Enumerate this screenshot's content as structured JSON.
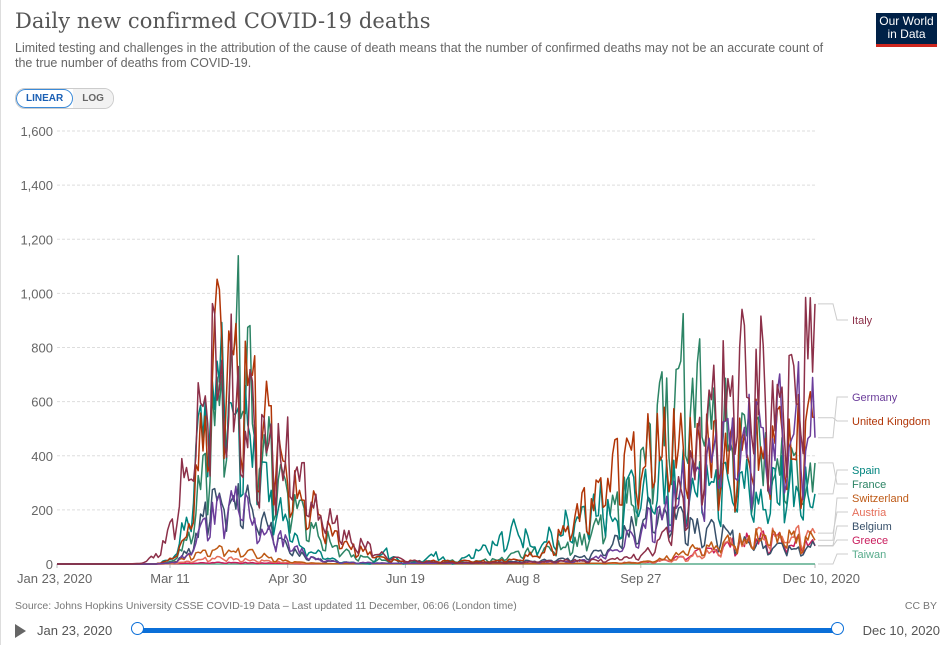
{
  "header": {
    "title": "Daily new confirmed COVID-19 deaths",
    "subtitle": "Limited testing and challenges in the attribution of the cause of death means that the number of confirmed deaths may not be an accurate count of the true number of deaths from COVID-19.",
    "logo_line1": "Our World",
    "logo_line2": "in Data"
  },
  "scale_toggle": {
    "options": [
      "LINEAR",
      "LOG"
    ],
    "selected": "LINEAR"
  },
  "footer": {
    "source": "Source: Johns Hopkins University CSSE COVID-19 Data – Last updated 11 December, 06:06 (London time)",
    "license": "CC BY"
  },
  "timeline": {
    "start_label": "Jan 23, 2020",
    "end_label": "Dec 10, 2020",
    "play_icon": "play-icon",
    "start_fraction": 0,
    "end_fraction": 1
  },
  "chart_data": {
    "type": "line",
    "title": "Daily new confirmed COVID-19 deaths",
    "xlabel": "",
    "ylabel": "",
    "x_start": "2020-01-23",
    "x_end": "2020-12-10",
    "x_days_total": 322,
    "xticks": [
      {
        "label": "Jan 23, 2020",
        "day": 0
      },
      {
        "label": "Mar 11",
        "day": 48
      },
      {
        "label": "Apr 30",
        "day": 98
      },
      {
        "label": "Jun 19",
        "day": 148
      },
      {
        "label": "Aug 8",
        "day": 198
      },
      {
        "label": "Sep 27",
        "day": 248
      },
      {
        "label": "Dec 10, 2020",
        "day": 322
      }
    ],
    "yticks": [
      0,
      200,
      400,
      600,
      800,
      1000,
      1200,
      1400,
      1600
    ],
    "ytick_labels": [
      "0",
      "200",
      "400",
      "600",
      "800",
      "1,000",
      "1,200",
      "1,400",
      "1,600"
    ],
    "ylim": [
      0,
      1600
    ],
    "grid": true,
    "legend_placement": "right",
    "sample_interval_days": 7,
    "series": [
      {
        "name": "Italy",
        "color": "#8c3049",
        "values": [
          0,
          0,
          0,
          0,
          0,
          2,
          30,
          170,
          420,
          720,
          800,
          650,
          560,
          470,
          420,
          300,
          220,
          150,
          90,
          60,
          30,
          15,
          10,
          6,
          5,
          5,
          5,
          4,
          6,
          10,
          10,
          14,
          12,
          15,
          20,
          30,
          50,
          120,
          300,
          450,
          620,
          720,
          750,
          700,
          650,
          660,
          900
        ]
      },
      {
        "name": "Germany",
        "color": "#6b3d9a",
        "values": [
          0,
          0,
          0,
          0,
          0,
          0,
          0,
          5,
          40,
          150,
          220,
          250,
          180,
          120,
          80,
          40,
          15,
          8,
          5,
          5,
          3,
          3,
          3,
          3,
          3,
          3,
          4,
          5,
          5,
          8,
          10,
          10,
          15,
          30,
          60,
          120,
          180,
          250,
          300,
          350,
          420,
          480,
          500,
          520,
          560,
          590,
          600
        ]
      },
      {
        "name": "United Kingdom",
        "color": "#b13507",
        "values": [
          0,
          0,
          0,
          0,
          0,
          0,
          0,
          20,
          150,
          600,
          900,
          820,
          650,
          500,
          380,
          260,
          170,
          120,
          60,
          40,
          20,
          12,
          10,
          12,
          10,
          12,
          10,
          15,
          20,
          40,
          70,
          140,
          220,
          300,
          380,
          420,
          460,
          500,
          480,
          440,
          420,
          480,
          500,
          470,
          500,
          520,
          520
        ]
      },
      {
        "name": "Spain",
        "color": "#00847e",
        "values": [
          0,
          0,
          0,
          0,
          0,
          0,
          0,
          20,
          200,
          700,
          880,
          650,
          400,
          250,
          150,
          70,
          40,
          10,
          5,
          0,
          50,
          0,
          10,
          40,
          0,
          30,
          60,
          100,
          150,
          60,
          120,
          160,
          200,
          250,
          200,
          280,
          300,
          320,
          340,
          300,
          350,
          320,
          300,
          280,
          310,
          300,
          280
        ]
      },
      {
        "name": "France",
        "color": "#2c8465",
        "values": [
          0,
          0,
          0,
          0,
          0,
          0,
          0,
          10,
          100,
          400,
          650,
          900,
          600,
          400,
          300,
          200,
          120,
          60,
          30,
          20,
          15,
          10,
          10,
          10,
          12,
          10,
          15,
          20,
          40,
          50,
          60,
          80,
          100,
          150,
          220,
          300,
          450,
          600,
          750,
          700,
          600,
          500,
          450,
          400,
          380,
          360,
          300
        ]
      },
      {
        "name": "Switzerland",
        "color": "#be5915",
        "values": [
          0,
          0,
          0,
          0,
          0,
          0,
          0,
          5,
          30,
          60,
          70,
          55,
          40,
          25,
          10,
          5,
          2,
          1,
          1,
          1,
          1,
          1,
          1,
          1,
          1,
          1,
          1,
          1,
          1,
          1,
          2,
          3,
          3,
          3,
          4,
          5,
          10,
          25,
          50,
          70,
          80,
          90,
          100,
          110,
          100,
          95,
          100
        ]
      },
      {
        "name": "Austria",
        "color": "#e56e5a",
        "values": [
          0,
          0,
          0,
          0,
          0,
          0,
          0,
          1,
          10,
          20,
          25,
          20,
          15,
          10,
          5,
          3,
          2,
          1,
          1,
          1,
          1,
          1,
          1,
          1,
          1,
          1,
          1,
          1,
          1,
          1,
          1,
          2,
          2,
          3,
          3,
          5,
          8,
          15,
          25,
          40,
          60,
          80,
          100,
          110,
          115,
          110,
          110
        ]
      },
      {
        "name": "Belgium",
        "color": "#38506a",
        "values": [
          0,
          0,
          0,
          0,
          0,
          0,
          0,
          5,
          60,
          200,
          300,
          280,
          200,
          120,
          60,
          30,
          15,
          8,
          5,
          4,
          3,
          3,
          3,
          3,
          4,
          5,
          6,
          8,
          10,
          12,
          15,
          20,
          30,
          50,
          90,
          150,
          200,
          210,
          190,
          150,
          120,
          100,
          90,
          80,
          75,
          70,
          70
        ]
      },
      {
        "name": "Greece",
        "color": "#c91d5d",
        "values": [
          0,
          0,
          0,
          0,
          0,
          0,
          0,
          1,
          3,
          5,
          6,
          5,
          4,
          3,
          2,
          1,
          1,
          1,
          1,
          1,
          1,
          1,
          1,
          1,
          1,
          1,
          1,
          1,
          1,
          2,
          2,
          2,
          3,
          3,
          4,
          6,
          8,
          15,
          30,
          45,
          60,
          75,
          90,
          100,
          95,
          90,
          90
        ]
      },
      {
        "name": "Taiwan",
        "color": "#58ac8c",
        "values": [
          0,
          0,
          0,
          0,
          0,
          0,
          0,
          0,
          0,
          0,
          0,
          0,
          0,
          0,
          0,
          0,
          0,
          0,
          0,
          0,
          0,
          0,
          0,
          0,
          0,
          0,
          0,
          0,
          0,
          0,
          0,
          0,
          0,
          0,
          0,
          0,
          0,
          0,
          0,
          0,
          0,
          0,
          0,
          0,
          0,
          0,
          0
        ]
      }
    ],
    "legend_order": [
      "Italy",
      "Germany",
      "United Kingdom",
      "Spain",
      "France",
      "Switzerland",
      "Austria",
      "Belgium",
      "Greece",
      "Taiwan"
    ]
  }
}
